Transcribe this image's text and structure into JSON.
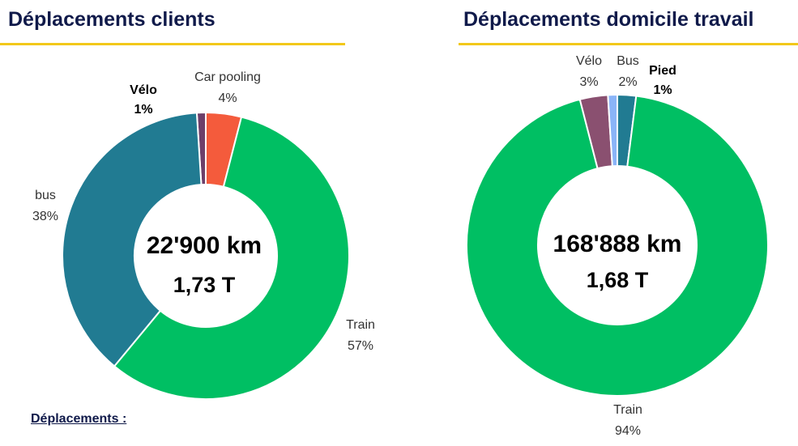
{
  "colors": {
    "title": "#101a4a",
    "underline": "#f2c81a",
    "train": "#00bf63",
    "bus": "#217b92",
    "car_pooling": "#f45b3c",
    "velo_left": "#6e3f6a",
    "velo_right": "#8a5070",
    "pied": "#8ab4f8",
    "bus_right": "#217b92"
  },
  "footer": {
    "label": "Déplacements :"
  },
  "chart_data": [
    {
      "type": "pie",
      "title": "Déplacements clients",
      "center": {
        "distance": "22'900 km",
        "co2": "1,73 T"
      },
      "slices": [
        {
          "name": "Vélo",
          "label": "1%",
          "value": 1,
          "color": "#6e3f6a"
        },
        {
          "name": "Car pooling",
          "label": "4%",
          "value": 4,
          "color": "#f45b3c"
        },
        {
          "name": "Train",
          "label": "57%",
          "value": 57,
          "color": "#00bf63"
        },
        {
          "name": "bus",
          "label": "38%",
          "value": 38,
          "color": "#217b92"
        }
      ]
    },
    {
      "type": "pie",
      "title": "Déplacements domicile travail",
      "center": {
        "distance": "168'888 km",
        "co2": "1,68 T"
      },
      "slices": [
        {
          "name": "Bus",
          "label": "2%",
          "value": 2,
          "color": "#217b92"
        },
        {
          "name": "Train",
          "label": "94%",
          "value": 94,
          "color": "#00bf63"
        },
        {
          "name": "Vélo",
          "label": "3%",
          "value": 3,
          "color": "#8a5070"
        },
        {
          "name": "Pied",
          "label": "1%",
          "value": 1,
          "color": "#8ab4f8"
        }
      ]
    }
  ]
}
